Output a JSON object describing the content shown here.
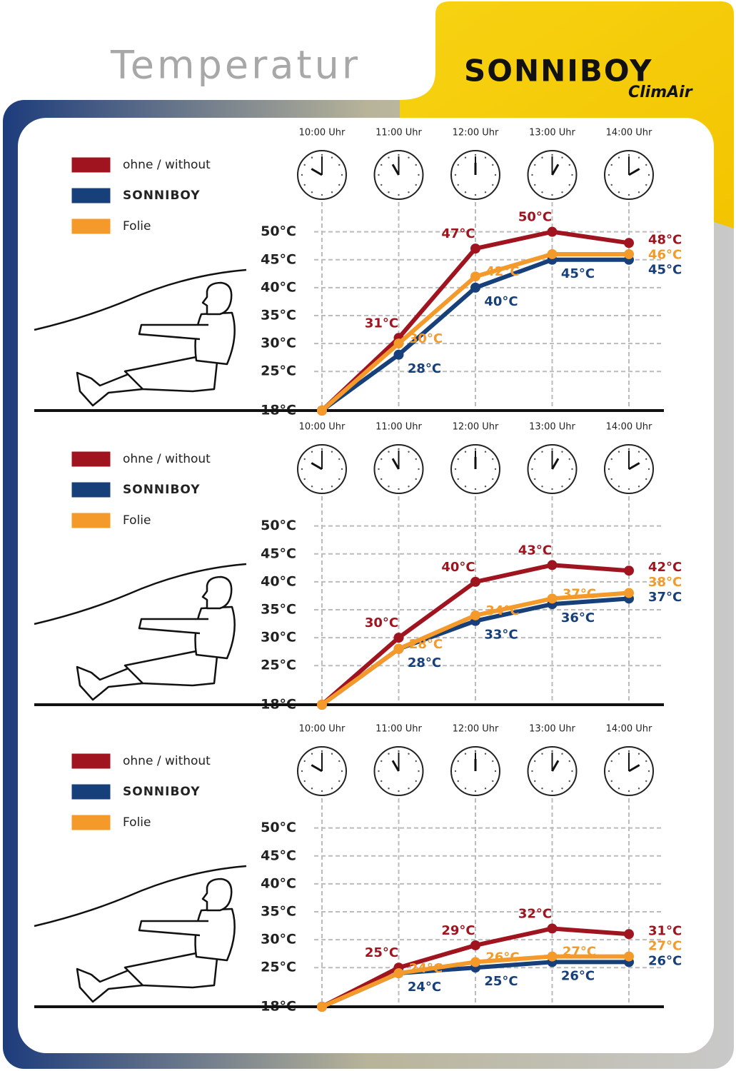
{
  "header": {
    "title": "Temperatur",
    "logo": "SONNIBOY",
    "logo_sub": "ClimAir"
  },
  "chart_data": [
    {
      "type": "line",
      "categories": [
        "10:00 Uhr",
        "11:00 Uhr",
        "12:00 Uhr",
        "13:00 Uhr",
        "14:00 Uhr"
      ],
      "series": [
        {
          "name": "ohne / without",
          "color": "#a01420",
          "values": [
            18,
            31,
            47,
            50,
            48
          ],
          "value_labels": [
            null,
            "31°C",
            "47°C",
            "50°C",
            "48°C"
          ]
        },
        {
          "name": "SONNIBOY",
          "color": "#173f7a",
          "values": [
            18,
            28,
            40,
            45,
            45
          ],
          "value_labels": [
            null,
            "28°C",
            "40°C",
            "45°C",
            "45°C"
          ]
        },
        {
          "name": "Folie",
          "color": "#f39a2a",
          "values": [
            18,
            30,
            42,
            46,
            46
          ],
          "value_labels": [
            null,
            "30°C",
            "42°C",
            null,
            "46°C"
          ]
        }
      ],
      "ylim": [
        18,
        52
      ],
      "yticks": [
        {
          "value": 18,
          "label": "18°C"
        },
        {
          "value": 25,
          "label": "25°C"
        },
        {
          "value": 30,
          "label": "30°C"
        },
        {
          "value": 35,
          "label": "35°C"
        },
        {
          "value": 40,
          "label": "40°C"
        },
        {
          "value": 45,
          "label": "45°C"
        },
        {
          "value": 50,
          "label": "50°C"
        }
      ],
      "grid": true
    },
    {
      "type": "line",
      "categories": [
        "10:00 Uhr",
        "11:00 Uhr",
        "12:00 Uhr",
        "13:00 Uhr",
        "14:00 Uhr"
      ],
      "series": [
        {
          "name": "ohne / without",
          "color": "#a01420",
          "values": [
            18,
            30,
            40,
            43,
            42
          ],
          "value_labels": [
            null,
            "30°C",
            "40°C",
            "43°C",
            "42°C"
          ]
        },
        {
          "name": "SONNIBOY",
          "color": "#173f7a",
          "values": [
            18,
            28,
            33,
            36,
            37
          ],
          "value_labels": [
            null,
            "28°C",
            "33°C",
            "36°C",
            "37°C"
          ]
        },
        {
          "name": "Folie",
          "color": "#f39a2a",
          "values": [
            18,
            28,
            34,
            37,
            38
          ],
          "value_labels": [
            null,
            "28°C",
            "34°C",
            "37°C",
            "38°C"
          ]
        }
      ],
      "ylim": [
        18,
        52
      ],
      "yticks": [
        {
          "value": 18,
          "label": "18°C"
        },
        {
          "value": 25,
          "label": "25°C"
        },
        {
          "value": 30,
          "label": "30°C"
        },
        {
          "value": 35,
          "label": "35°C"
        },
        {
          "value": 40,
          "label": "40°C"
        },
        {
          "value": 45,
          "label": "45°C"
        },
        {
          "value": 50,
          "label": "50°C"
        }
      ],
      "grid": true
    },
    {
      "type": "line",
      "categories": [
        "10:00 Uhr",
        "11:00 Uhr",
        "12:00 Uhr",
        "13:00 Uhr",
        "14:00 Uhr"
      ],
      "series": [
        {
          "name": "ohne / without",
          "color": "#a01420",
          "values": [
            18,
            25,
            29,
            32,
            31
          ],
          "value_labels": [
            null,
            "25°C",
            "29°C",
            "32°C",
            "31°C"
          ]
        },
        {
          "name": "SONNIBOY",
          "color": "#173f7a",
          "values": [
            18,
            24,
            25,
            26,
            26
          ],
          "value_labels": [
            null,
            "24°C",
            "25°C",
            "26°C",
            "26°C"
          ]
        },
        {
          "name": "Folie",
          "color": "#f39a2a",
          "values": [
            18,
            24,
            26,
            27,
            27
          ],
          "value_labels": [
            null,
            "24°C",
            "26°C",
            "27°C",
            "27°C"
          ]
        }
      ],
      "ylim": [
        18,
        52
      ],
      "yticks": [
        {
          "value": 18,
          "label": "18°C"
        },
        {
          "value": 25,
          "label": "25°C"
        },
        {
          "value": 30,
          "label": "30°C"
        },
        {
          "value": 35,
          "label": "35°C"
        },
        {
          "value": 40,
          "label": "40°C"
        },
        {
          "value": 45,
          "label": "45°C"
        },
        {
          "value": 50,
          "label": "50°C"
        }
      ],
      "grid": true
    }
  ]
}
